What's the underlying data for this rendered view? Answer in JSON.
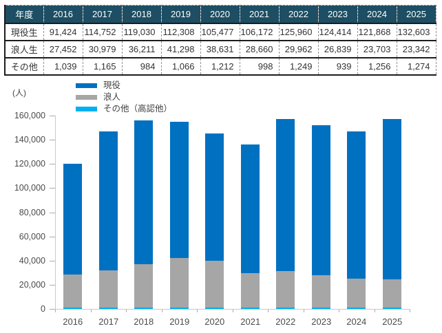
{
  "table": {
    "header": {
      "label": "年度",
      "years": [
        "2016",
        "2017",
        "2018",
        "2019",
        "2020",
        "2021",
        "2022",
        "2023",
        "2024",
        "2025"
      ]
    },
    "rows": [
      {
        "label": "現役生",
        "values": [
          "91,424",
          "114,752",
          "119,030",
          "112,308",
          "105,477",
          "106,172",
          "125,960",
          "124,414",
          "121,868",
          "132,603"
        ]
      },
      {
        "label": "浪人生",
        "values": [
          "27,452",
          "30,979",
          "36,211",
          "41,298",
          "38,631",
          "28,660",
          "29,962",
          "26,839",
          "23,703",
          "23,342"
        ]
      },
      {
        "label": "その他",
        "values": [
          "1,039",
          "1,165",
          "984",
          "1,066",
          "1,212",
          "998",
          "1,249",
          "939",
          "1,256",
          "1,274"
        ]
      }
    ]
  },
  "chart_data": {
    "type": "bar",
    "stacked": true,
    "title": "",
    "unit_label": "(人)",
    "xlabel": "",
    "ylabel": "(人)",
    "categories": [
      "2016",
      "2017",
      "2018",
      "2019",
      "2020",
      "2021",
      "2022",
      "2023",
      "2024",
      "2025"
    ],
    "series": [
      {
        "name": "現役",
        "color": "#0071c1",
        "values": [
          91424,
          114752,
          119030,
          112308,
          105477,
          106172,
          125960,
          124414,
          121868,
          132603
        ]
      },
      {
        "name": "浪人",
        "color": "#a6a6a6",
        "values": [
          27452,
          30979,
          36211,
          41298,
          38631,
          28660,
          29962,
          26839,
          23703,
          23342
        ]
      },
      {
        "name": "その他（高認他）",
        "color": "#00b0f0",
        "values": [
          1039,
          1165,
          984,
          1066,
          1212,
          998,
          1249,
          939,
          1256,
          1274
        ]
      }
    ],
    "stack_order_bottom_to_top": [
      "その他（高認他）",
      "浪人",
      "現役"
    ],
    "ylim": [
      0,
      160000
    ],
    "ytick_interval": 20000,
    "ytick_labels": [
      "0",
      "20,000",
      "40,000",
      "60,000",
      "80,000",
      "100,000",
      "120,000",
      "140,000",
      "160,000"
    ],
    "grid": false,
    "legend_position": "top-left"
  },
  "colors": {
    "table_header_bg": "#1d4e63",
    "table_header_text": "#ffffff",
    "table_body_text": "#333333",
    "axis_line": "#c9c9c9",
    "axis_text": "#4a4a4a"
  }
}
